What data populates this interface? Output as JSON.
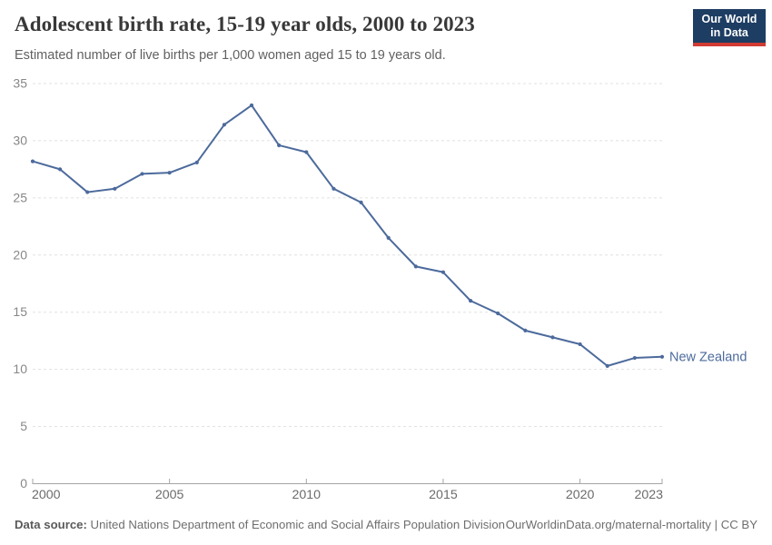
{
  "header": {
    "title": "Adolescent birth rate, 15-19 year olds, 2000 to 2023",
    "subtitle": "Estimated number of live births per 1,000 women aged 15 to 19 years old.",
    "logo_line1": "Our World",
    "logo_line2": "in Data"
  },
  "footer": {
    "source_label": "Data source:",
    "source_text": " United Nations Department of Economic and Social Affairs Population Division",
    "link_text": "OurWorldinData.org/maternal-mortality | CC BY"
  },
  "colors": {
    "line": "#4C6A9C",
    "grid": "#e1e1e1",
    "axis": "#a5a5a5",
    "y_tick_label": "#878787",
    "x_tick_label": "#6b6b6b",
    "logo_bg": "#1d3d63",
    "logo_bar": "#d13b32"
  },
  "chart_data": {
    "type": "line",
    "title": "Adolescent birth rate, 15-19 year olds, 2000 to 2023",
    "ylabel": "",
    "xlabel": "",
    "entity_label": "New Zealand",
    "series": [
      {
        "name": "New Zealand",
        "x": [
          2000,
          2001,
          2002,
          2003,
          2004,
          2005,
          2006,
          2007,
          2008,
          2009,
          2010,
          2011,
          2012,
          2013,
          2014,
          2015,
          2016,
          2017,
          2018,
          2019,
          2020,
          2021,
          2022,
          2023
        ],
        "values": [
          28.2,
          27.5,
          25.5,
          25.8,
          27.1,
          27.2,
          28.1,
          31.4,
          33.1,
          29.6,
          29.0,
          25.8,
          24.6,
          21.5,
          19.0,
          18.5,
          16.0,
          14.9,
          13.4,
          12.8,
          12.2,
          10.3,
          11.0,
          11.1
        ]
      }
    ],
    "xlim": [
      2000,
      2023
    ],
    "ylim": [
      0,
      35
    ],
    "xticks": [
      2000,
      2005,
      2010,
      2015,
      2020,
      2023
    ],
    "yticks": [
      0,
      5,
      10,
      15,
      20,
      25,
      30,
      35
    ],
    "grid": "horizontal-dashed",
    "legend_position": "end-of-line-label",
    "markers": true
  }
}
